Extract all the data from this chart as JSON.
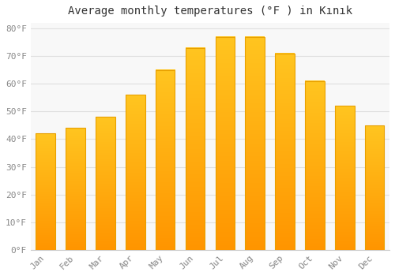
{
  "months": [
    "Jan",
    "Feb",
    "Mar",
    "Apr",
    "May",
    "Jun",
    "Jul",
    "Aug",
    "Sep",
    "Oct",
    "Nov",
    "Dec"
  ],
  "temperatures": [
    42,
    44,
    48,
    56,
    65,
    73,
    77,
    77,
    71,
    61,
    52,
    45
  ],
  "bar_color_top": "#FFC020",
  "bar_color_bottom": "#FF9500",
  "bar_edge_color": "#E8A000",
  "title": "Average monthly temperatures (°F ) in Kınık",
  "ylim": [
    0,
    82
  ],
  "yticks": [
    0,
    10,
    20,
    30,
    40,
    50,
    60,
    70,
    80
  ],
  "ytick_labels": [
    "0°F",
    "10°F",
    "20°F",
    "30°F",
    "40°F",
    "50°F",
    "60°F",
    "70°F",
    "80°F"
  ],
  "grid_color": "#e0e0e0",
  "background_color": "#ffffff",
  "plot_bg_color": "#f8f8f8",
  "title_fontsize": 10,
  "tick_fontsize": 8,
  "tick_color": "#888888",
  "bar_width": 0.65
}
